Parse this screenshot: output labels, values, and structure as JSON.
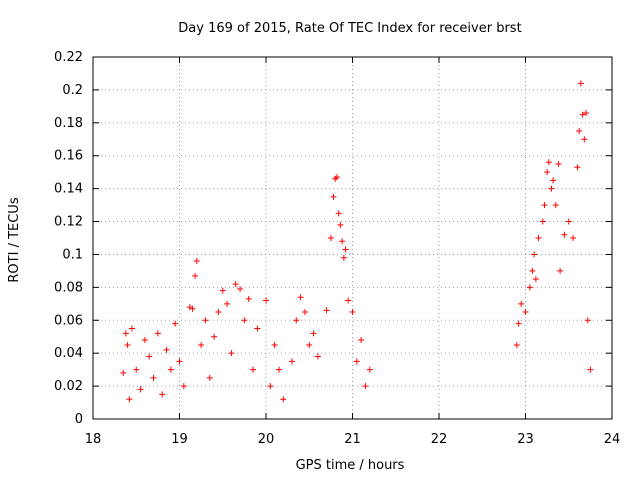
{
  "chart_data": {
    "type": "scatter",
    "title": "Day 169 of 2015, Rate Of TEC Index for receiver brst",
    "xlabel": "GPS time / hours",
    "ylabel": "ROTI / TECUs",
    "xlim": [
      18,
      24
    ],
    "ylim": [
      0,
      0.22
    ],
    "x_ticks": [
      "18",
      "19",
      "20",
      "21",
      "22",
      "23",
      "24"
    ],
    "y_ticks": [
      "0",
      "0.02",
      "0.04",
      "0.06",
      "0.08",
      "0.1",
      "0.12",
      "0.14",
      "0.16",
      "0.18",
      "0.2",
      "0.22"
    ],
    "grid": true,
    "marker": "+",
    "series": [
      {
        "name": "ROTI",
        "color": "#ff0000",
        "points": [
          {
            "x": 18.35,
            "y": 0.028
          },
          {
            "x": 18.38,
            "y": 0.052
          },
          {
            "x": 18.4,
            "y": 0.045
          },
          {
            "x": 18.42,
            "y": 0.012
          },
          {
            "x": 18.45,
            "y": 0.055
          },
          {
            "x": 18.5,
            "y": 0.03
          },
          {
            "x": 18.55,
            "y": 0.018
          },
          {
            "x": 18.6,
            "y": 0.048
          },
          {
            "x": 18.65,
            "y": 0.038
          },
          {
            "x": 18.7,
            "y": 0.025
          },
          {
            "x": 18.75,
            "y": 0.052
          },
          {
            "x": 18.8,
            "y": 0.015
          },
          {
            "x": 18.85,
            "y": 0.042
          },
          {
            "x": 18.9,
            "y": 0.03
          },
          {
            "x": 18.95,
            "y": 0.058
          },
          {
            "x": 19.0,
            "y": 0.035
          },
          {
            "x": 19.05,
            "y": 0.02
          },
          {
            "x": 19.12,
            "y": 0.068
          },
          {
            "x": 19.15,
            "y": 0.067
          },
          {
            "x": 19.18,
            "y": 0.087
          },
          {
            "x": 19.2,
            "y": 0.096
          },
          {
            "x": 19.25,
            "y": 0.045
          },
          {
            "x": 19.3,
            "y": 0.06
          },
          {
            "x": 19.35,
            "y": 0.025
          },
          {
            "x": 19.4,
            "y": 0.05
          },
          {
            "x": 19.45,
            "y": 0.065
          },
          {
            "x": 19.5,
            "y": 0.078
          },
          {
            "x": 19.55,
            "y": 0.07
          },
          {
            "x": 19.6,
            "y": 0.04
          },
          {
            "x": 19.65,
            "y": 0.082
          },
          {
            "x": 19.7,
            "y": 0.079
          },
          {
            "x": 19.75,
            "y": 0.06
          },
          {
            "x": 19.8,
            "y": 0.073
          },
          {
            "x": 19.85,
            "y": 0.03
          },
          {
            "x": 19.9,
            "y": 0.055
          },
          {
            "x": 20.0,
            "y": 0.072
          },
          {
            "x": 20.05,
            "y": 0.02
          },
          {
            "x": 20.1,
            "y": 0.045
          },
          {
            "x": 20.15,
            "y": 0.03
          },
          {
            "x": 20.2,
            "y": 0.012
          },
          {
            "x": 20.3,
            "y": 0.035
          },
          {
            "x": 20.35,
            "y": 0.06
          },
          {
            "x": 20.4,
            "y": 0.074
          },
          {
            "x": 20.45,
            "y": 0.065
          },
          {
            "x": 20.5,
            "y": 0.045
          },
          {
            "x": 20.55,
            "y": 0.052
          },
          {
            "x": 20.6,
            "y": 0.038
          },
          {
            "x": 20.7,
            "y": 0.066
          },
          {
            "x": 20.75,
            "y": 0.11
          },
          {
            "x": 20.78,
            "y": 0.135
          },
          {
            "x": 20.8,
            "y": 0.146
          },
          {
            "x": 20.82,
            "y": 0.147
          },
          {
            "x": 20.84,
            "y": 0.125
          },
          {
            "x": 20.86,
            "y": 0.118
          },
          {
            "x": 20.88,
            "y": 0.108
          },
          {
            "x": 20.9,
            "y": 0.098
          },
          {
            "x": 20.92,
            "y": 0.103
          },
          {
            "x": 20.95,
            "y": 0.072
          },
          {
            "x": 21.0,
            "y": 0.065
          },
          {
            "x": 21.05,
            "y": 0.035
          },
          {
            "x": 21.1,
            "y": 0.048
          },
          {
            "x": 21.15,
            "y": 0.02
          },
          {
            "x": 21.2,
            "y": 0.03
          },
          {
            "x": 22.9,
            "y": 0.045
          },
          {
            "x": 22.92,
            "y": 0.058
          },
          {
            "x": 22.95,
            "y": 0.07
          },
          {
            "x": 23.0,
            "y": 0.065
          },
          {
            "x": 23.05,
            "y": 0.08
          },
          {
            "x": 23.08,
            "y": 0.09
          },
          {
            "x": 23.1,
            "y": 0.1
          },
          {
            "x": 23.12,
            "y": 0.085
          },
          {
            "x": 23.15,
            "y": 0.11
          },
          {
            "x": 23.2,
            "y": 0.12
          },
          {
            "x": 23.22,
            "y": 0.13
          },
          {
            "x": 23.25,
            "y": 0.15
          },
          {
            "x": 23.27,
            "y": 0.156
          },
          {
            "x": 23.3,
            "y": 0.14
          },
          {
            "x": 23.32,
            "y": 0.145
          },
          {
            "x": 23.35,
            "y": 0.13
          },
          {
            "x": 23.38,
            "y": 0.155
          },
          {
            "x": 23.4,
            "y": 0.09
          },
          {
            "x": 23.45,
            "y": 0.112
          },
          {
            "x": 23.5,
            "y": 0.12
          },
          {
            "x": 23.55,
            "y": 0.11
          },
          {
            "x": 23.6,
            "y": 0.153
          },
          {
            "x": 23.62,
            "y": 0.175
          },
          {
            "x": 23.64,
            "y": 0.204
          },
          {
            "x": 23.66,
            "y": 0.185
          },
          {
            "x": 23.68,
            "y": 0.17
          },
          {
            "x": 23.7,
            "y": 0.186
          },
          {
            "x": 23.72,
            "y": 0.06
          },
          {
            "x": 23.75,
            "y": 0.03
          }
        ]
      }
    ]
  }
}
